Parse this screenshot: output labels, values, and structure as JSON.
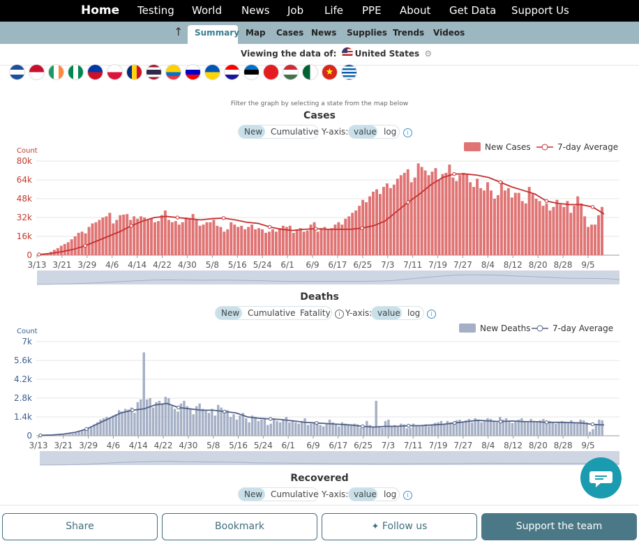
{
  "topnav": {
    "home": "Home",
    "items": [
      "Testing",
      "World",
      "News",
      "Job",
      "Life",
      "PPE",
      "About",
      "Get Data",
      "Support Us"
    ]
  },
  "subnav": {
    "active": "Summary",
    "items": [
      "Map",
      "Cases",
      "News",
      "Supplies",
      "Trends",
      "Videos"
    ],
    "up_icon": "arrow-up-icon"
  },
  "viewing": {
    "label": "Viewing the data of:",
    "country": "United States",
    "settings_icon": "gear-icon"
  },
  "flags": [
    "honduras",
    "indonesia",
    "ireland",
    "nigeria",
    "philippines",
    "poland",
    "romania",
    "thailand",
    "ecuador",
    "slovenia",
    "ukraine",
    "croatia",
    "estonia",
    "albania",
    "hungary",
    "algeria",
    "vietnam",
    "greece"
  ],
  "filter_note": "Filter the graph by selecting a state from the map below",
  "colors": {
    "cases": "#d64242",
    "cases_line": "#c62f2f",
    "deaths": "#8a97b4",
    "deaths_line": "#4f5f85",
    "accent": "#3b8fc9",
    "nav": "#9db7c0",
    "button": "#4a7886"
  },
  "cases_panel": {
    "title": "Cases",
    "toggles": [
      "New",
      "Cumulative"
    ],
    "yaxis_label": "Y-axis:",
    "scales": [
      "value",
      "log"
    ],
    "legend": [
      "New Cases",
      "7-day Average"
    ],
    "count_label": "Count"
  },
  "deaths_panel": {
    "title": "Deaths",
    "toggles": [
      "New",
      "Cumulative",
      "Fatality"
    ],
    "yaxis_label": "Y-axis:",
    "scales": [
      "value",
      "log"
    ],
    "legend": [
      "New Deaths",
      "7-day Average"
    ],
    "count_label": "Count"
  },
  "recovered_panel": {
    "title": "Recovered",
    "toggles": [
      "New",
      "Cumulative"
    ],
    "yaxis_label": "Y-axis:",
    "scales": [
      "value",
      "log"
    ]
  },
  "buttons": {
    "share": "Share",
    "bookmark": "Bookmark",
    "follow": "Follow us",
    "support": "Support the team"
  },
  "chart_data": [
    {
      "type": "bar",
      "title": "Cases",
      "ylabel": "Count",
      "ylim": [
        0,
        80000
      ],
      "yticks": [
        "0",
        "16k",
        "32k",
        "48k",
        "64k",
        "80k"
      ],
      "xticks": [
        "3/13",
        "3/21",
        "3/29",
        "4/6",
        "4/14",
        "4/22",
        "4/30",
        "5/8",
        "5/16",
        "5/24",
        "6/1",
        "6/9",
        "6/17",
        "6/25",
        "7/3",
        "7/11",
        "7/19",
        "7/27",
        "8/4",
        "8/12",
        "8/20",
        "8/28",
        "9/5"
      ],
      "x_start": "3/13",
      "x_end": "9/10",
      "series": [
        {
          "name": "New Cases",
          "type": "bar",
          "values": [
            500,
            1200,
            1800,
            2800,
            4500,
            6000,
            8000,
            9500,
            11000,
            13500,
            16000,
            19000,
            20000,
            18500,
            24000,
            27000,
            28000,
            30000,
            32000,
            33000,
            36000,
            27000,
            30000,
            34000,
            34500,
            35000,
            30000,
            33000,
            31000,
            33000,
            32000,
            30000,
            31000,
            28000,
            29000,
            34000,
            38000,
            30000,
            28000,
            29000,
            26000,
            28000,
            32000,
            31000,
            35000,
            30000,
            25000,
            26000,
            28000,
            28000,
            30000,
            25000,
            24000,
            20000,
            22000,
            28000,
            26000,
            24000,
            25000,
            22000,
            24000,
            26000,
            22000,
            23000,
            22000,
            19000,
            20000,
            22000,
            20000,
            23000,
            25000,
            24000,
            25000,
            19000,
            22000,
            23000,
            20000,
            21000,
            26000,
            28000,
            20000,
            23000,
            24000,
            22000,
            23000,
            26000,
            28000,
            26000,
            31000,
            33000,
            36000,
            38000,
            42000,
            47000,
            45000,
            50000,
            54000,
            56000,
            52000,
            58000,
            61000,
            57000,
            60000,
            65000,
            68000,
            70000,
            73000,
            62000,
            66000,
            78000,
            75000,
            72000,
            68000,
            71000,
            74000,
            64000,
            69000,
            70000,
            77000,
            66000,
            63000,
            68000,
            70000,
            69000,
            62000,
            58000,
            65000,
            57000,
            55000,
            62000,
            55000,
            48000,
            51000,
            63000,
            55000,
            57000,
            49000,
            53000,
            53000,
            46000,
            44000,
            58000,
            52000,
            48000,
            46000,
            42000,
            44000,
            38000,
            41000,
            47000,
            43000,
            41000,
            46000,
            36000,
            42000,
            50000,
            44000,
            33000,
            24000,
            26000,
            26000,
            34000,
            41000
          ]
        },
        {
          "name": "7-day Average",
          "type": "line",
          "values": [
            600,
            1500,
            3000,
            5000,
            8000,
            12000,
            16000,
            20000,
            25000,
            29000,
            32000,
            33000,
            32000,
            31000,
            30000,
            31000,
            31500,
            30000,
            28000,
            27000,
            24000,
            22000,
            21000,
            22000,
            22500,
            22000,
            22000,
            22000,
            23000,
            25000,
            29000,
            37000,
            45000,
            52000,
            60000,
            66000,
            69000,
            69000,
            68000,
            66000,
            62000,
            58000,
            55000,
            52000,
            46000,
            44000,
            43000,
            43000,
            41000,
            35000
          ]
        }
      ]
    },
    {
      "type": "bar",
      "title": "Deaths",
      "ylabel": "Count",
      "ylim": [
        0,
        7000
      ],
      "yticks": [
        "0",
        "1.4k",
        "2.8k",
        "4.2k",
        "5.6k",
        "7k"
      ],
      "xticks": [
        "3/13",
        "3/21",
        "3/29",
        "4/6",
        "4/14",
        "4/22",
        "4/30",
        "5/8",
        "5/16",
        "5/24",
        "6/1",
        "6/9",
        "6/17",
        "6/25",
        "7/3",
        "7/11",
        "7/19",
        "7/27",
        "8/4",
        "8/12",
        "8/20",
        "8/28",
        "9/5"
      ],
      "x_start": "3/13",
      "x_end": "9/10",
      "series": [
        {
          "name": "New Deaths",
          "type": "bar",
          "values": [
            10,
            12,
            15,
            20,
            25,
            35,
            50,
            60,
            80,
            120,
            150,
            220,
            300,
            400,
            450,
            550,
            700,
            850,
            1000,
            1200,
            1300,
            1400,
            1350,
            1500,
            1600,
            1900,
            1800,
            2000,
            1950,
            2100,
            1700,
            2500,
            2700,
            6200,
            2700,
            2800,
            2100,
            2500,
            2600,
            2400,
            2900,
            2800,
            2200,
            2000,
            1800,
            2400,
            2600,
            2200,
            2000,
            1600,
            2200,
            2400,
            2000,
            1900,
            1700,
            2000,
            1500,
            2300,
            2100,
            1800,
            1900,
            1400,
            1600,
            1200,
            1500,
            1700,
            1300,
            1000,
            1500,
            1400,
            1100,
            1200,
            1300,
            800,
            900,
            1300,
            1100,
            1000,
            1200,
            1400,
            1000,
            1150,
            1000,
            900,
            1100,
            1300,
            800,
            900,
            1000,
            950,
            800,
            700,
            900,
            1200,
            1000,
            850,
            700,
            1000,
            900,
            800,
            750,
            900,
            850,
            600,
            650,
            1100,
            800,
            700,
            2600,
            700,
            600,
            1100,
            1200,
            700,
            800,
            650,
            900,
            850,
            550,
            600,
            900,
            750,
            700,
            800,
            850,
            700,
            800,
            950,
            1000,
            1100,
            900,
            1100,
            1000,
            950,
            1150,
            1200,
            1050,
            1150,
            1250,
            1000,
            1300,
            1200,
            1000,
            1150,
            1300,
            1250,
            1100,
            1000,
            1400,
            1200,
            1300,
            1100,
            950,
            1050,
            1200,
            1300,
            1100,
            1000,
            1250,
            1100,
            1050,
            1150,
            1250,
            1000,
            1100,
            1000,
            900,
            1050,
            1100,
            1050,
            1000,
            1150,
            1000,
            900,
            1200,
            1150,
            1000,
            300,
            500,
            800,
            1200,
            1150
          ]
        },
        {
          "name": "7-day Average",
          "type": "line",
          "values": [
            30,
            60,
            120,
            250,
            500,
            900,
            1300,
            1700,
            1900,
            2000,
            2300,
            2400,
            2100,
            2000,
            1900,
            1900,
            1800,
            1700,
            1400,
            1300,
            1250,
            1200,
            1100,
            1000,
            950,
            900,
            850,
            800,
            700,
            650,
            700,
            700,
            750,
            750,
            800,
            850,
            950,
            1050,
            1150,
            1100,
            1050,
            1100,
            1050,
            1050,
            1000,
            1000,
            980,
            950,
            850,
            800
          ]
        }
      ]
    }
  ]
}
